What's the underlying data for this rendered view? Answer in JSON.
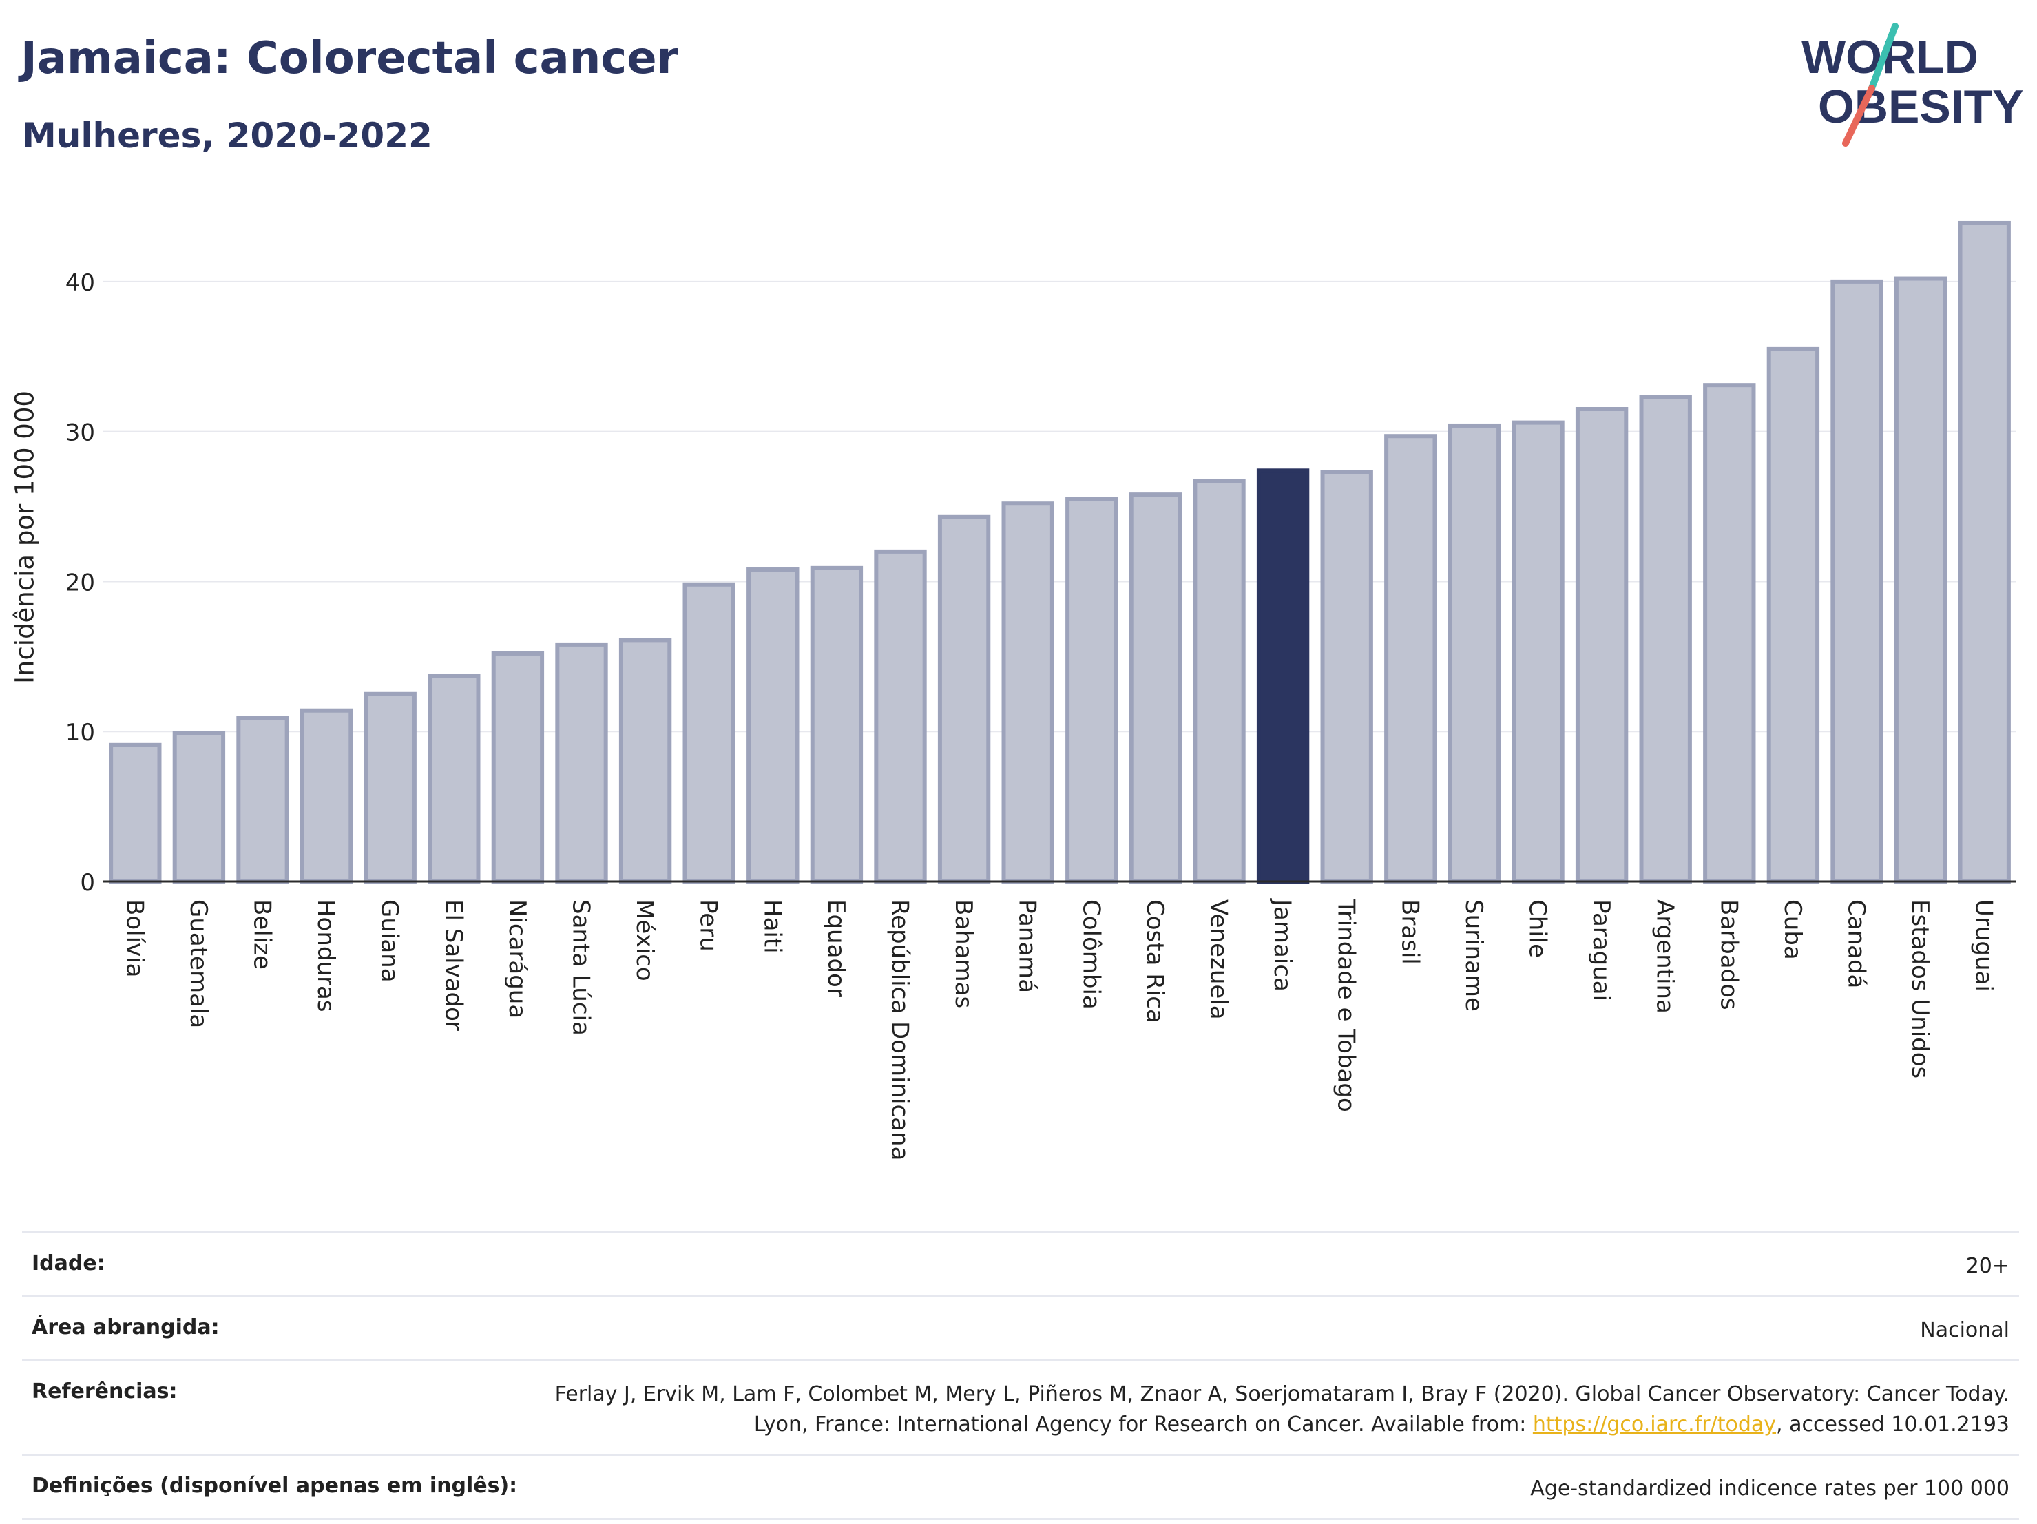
{
  "header": {
    "title": "Jamaica: Colorectal cancer",
    "subtitle": "Mulheres, 2020-2022"
  },
  "logo": {
    "line1": "WORLD",
    "line2": "OBESITY",
    "accent_teal": "#3bbfb0",
    "accent_coral": "#e8675a"
  },
  "chart_data": {
    "type": "bar",
    "ylabel": "Incidência por 100 000",
    "ylim": [
      0,
      45
    ],
    "yticks": [
      0,
      10,
      20,
      30,
      40
    ],
    "grid": true,
    "highlight": "Jamaica",
    "colors": {
      "bar": "#bfc3d1",
      "bar_stroke": "#9da3bb",
      "highlight": "#2b3560"
    },
    "categories": [
      "Bolívia",
      "Guatemala",
      "Belize",
      "Honduras",
      "Guiana",
      "El Salvador",
      "Nicarágua",
      "Santa Lúcia",
      "México",
      "Peru",
      "Haiti",
      "Equador",
      "República Dominicana",
      "Bahamas",
      "Panamá",
      "Colômbia",
      "Costa Rica",
      "Venezuela",
      "Jamaica",
      "Trindade e Tobago",
      "Brasil",
      "Suriname",
      "Chile",
      "Paraguai",
      "Argentina",
      "Barbados",
      "Cuba",
      "Canadá",
      "Estados Unidos",
      "Uruguai"
    ],
    "values": [
      9.1,
      9.9,
      10.9,
      11.4,
      12.5,
      13.7,
      15.2,
      15.8,
      16.1,
      19.8,
      20.8,
      20.9,
      22.0,
      24.3,
      25.2,
      25.5,
      25.8,
      26.7,
      27.4,
      27.3,
      29.7,
      30.4,
      30.6,
      31.5,
      32.3,
      33.1,
      35.5,
      40.0,
      40.2,
      43.9
    ]
  },
  "info": {
    "age_label": "Idade:",
    "age_value": "20+",
    "area_label": "Área abrangida:",
    "area_value": "Nacional",
    "ref_label": "Referências:",
    "ref_text_1": "Ferlay J, Ervik M, Lam F, Colombet M, Mery L, Piñeros M, Znaor A, Soerjomataram I, Bray F (2020). Global Cancer Observatory: Cancer Today. Lyon, France: International Agency for Research on Cancer. Available from: ",
    "ref_link": "https://gco.iarc.fr/today",
    "ref_text_2": ", accessed 10.01.2193",
    "def_label": "Definições (disponível apenas em inglês):",
    "def_value": "Age-standardized indicence rates per 100 000"
  }
}
